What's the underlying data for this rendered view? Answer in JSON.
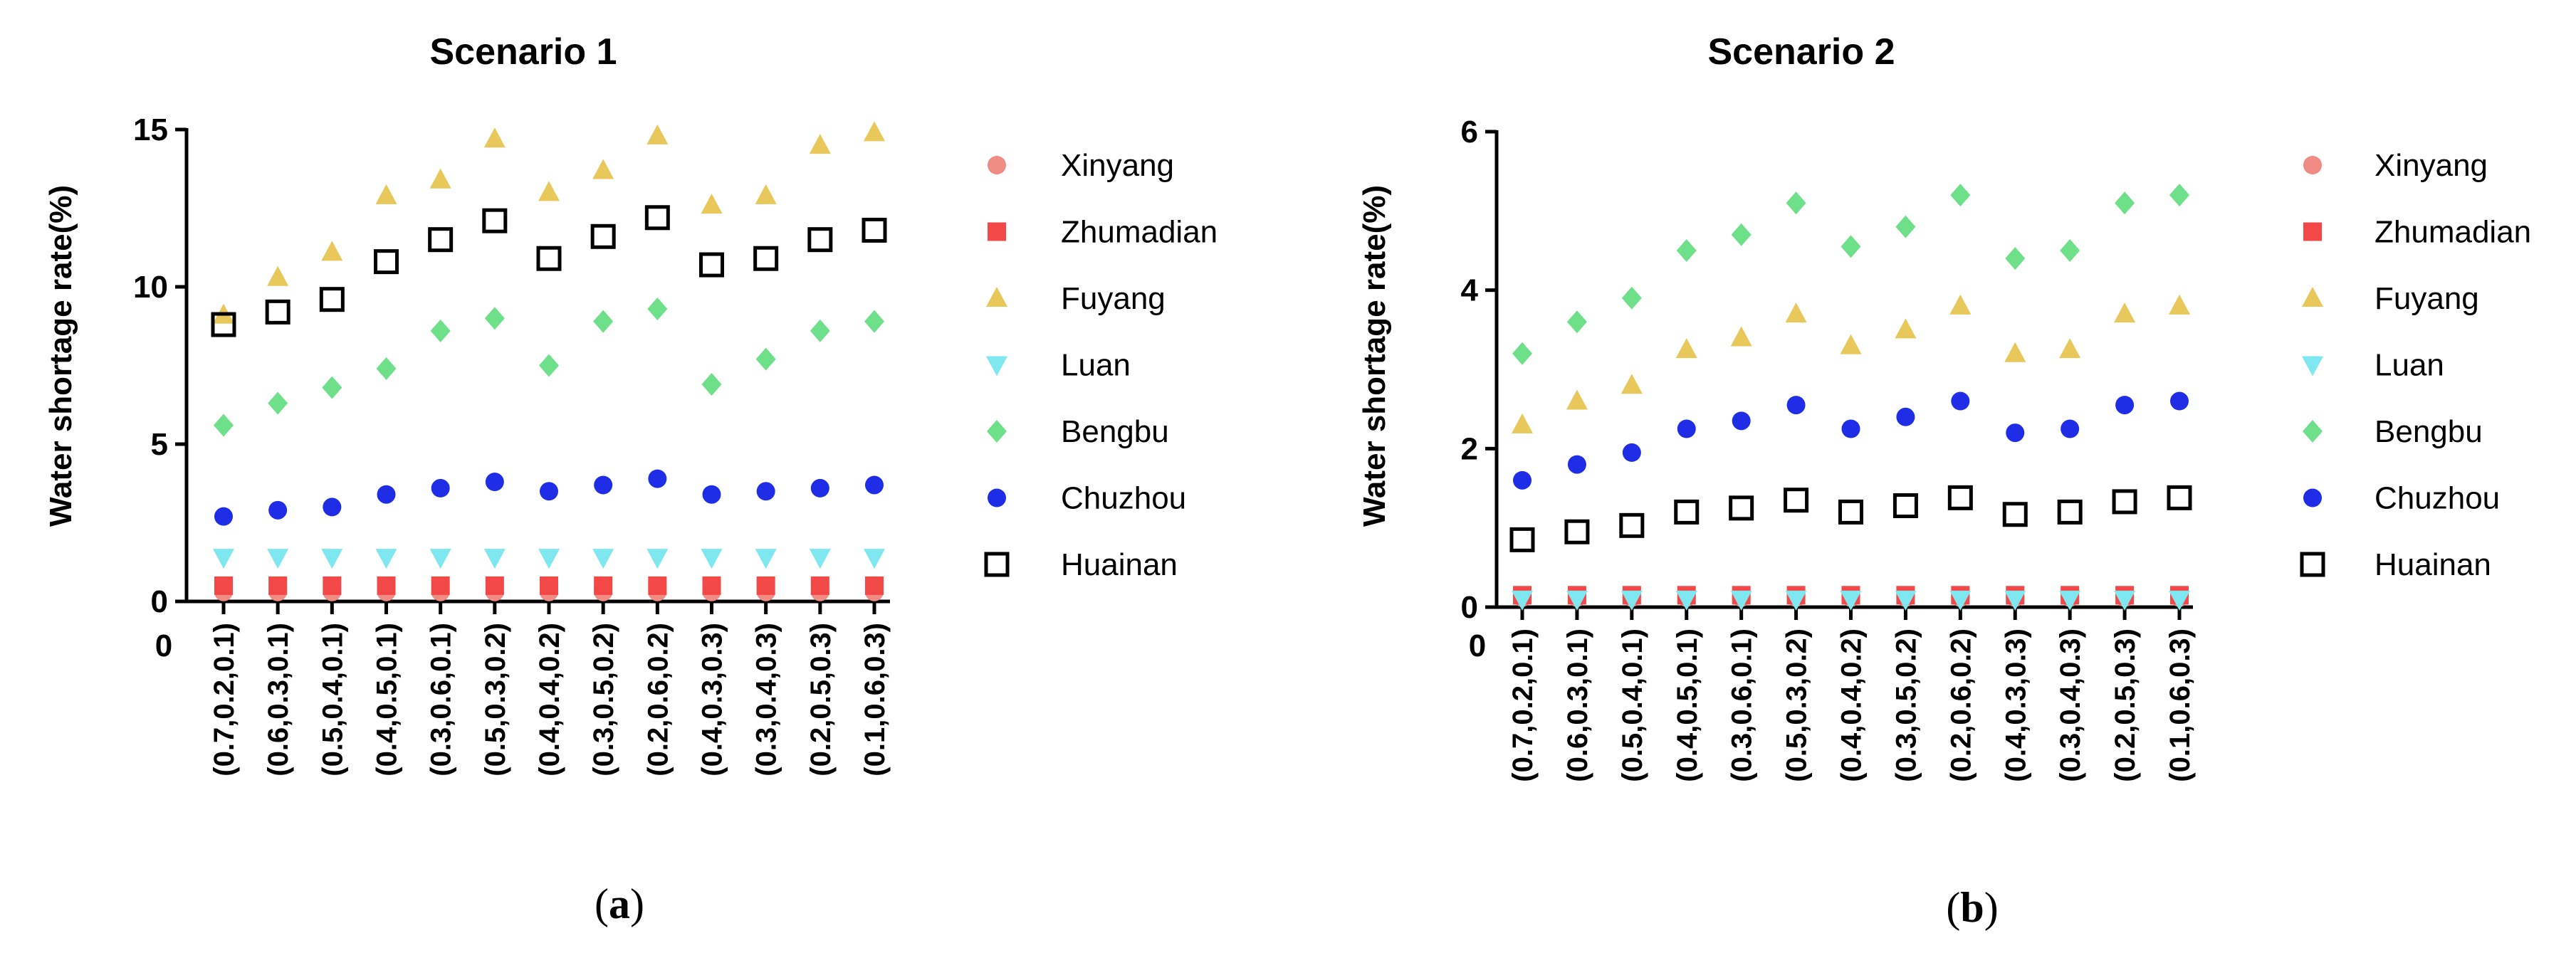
{
  "chart_data": [
    {
      "type": "scatter",
      "panel": "a",
      "title": "Scenario 1",
      "ylabel": "Water shortage rate(%)",
      "xlabel": "",
      "ylim": [
        0,
        15
      ],
      "yticks": [
        0,
        5,
        10,
        15
      ],
      "origin_label": "0",
      "categories": [
        "(0.7,0.2,0.1)",
        "(0.6,0.3,0.1)",
        "(0.5,0.4,0.1)",
        "(0.4,0.5,0.1)",
        "(0.3,0.6,0.1)",
        "(0.5,0.3,0.2)",
        "(0.4,0.4,0.2)",
        "(0.3,0.5,0.2)",
        "(0.2,0.6,0.2)",
        "(0.4,0.3,0.3)",
        "(0.3,0.4,0.3)",
        "(0.2,0.5,0.3)",
        "(0.1,0.6,0.3)"
      ],
      "series": [
        {
          "name": "Xinyang",
          "marker": "circle",
          "color": "#f08c84",
          "values": [
            0.3,
            0.3,
            0.3,
            0.3,
            0.3,
            0.3,
            0.3,
            0.3,
            0.3,
            0.3,
            0.3,
            0.3,
            0.3
          ]
        },
        {
          "name": "Zhumadian",
          "marker": "square",
          "color": "#f24848",
          "values": [
            0.5,
            0.5,
            0.5,
            0.5,
            0.5,
            0.5,
            0.5,
            0.5,
            0.5,
            0.5,
            0.5,
            0.5,
            0.5
          ]
        },
        {
          "name": "Fuyang",
          "marker": "triangle-up",
          "color": "#e8c85a",
          "values": [
            9.1,
            10.3,
            11.1,
            12.9,
            13.4,
            14.7,
            13.0,
            13.7,
            14.8,
            12.6,
            12.9,
            14.5,
            14.9
          ]
        },
        {
          "name": "Luan",
          "marker": "triangle-down",
          "color": "#7fe7f0",
          "values": [
            1.4,
            1.4,
            1.4,
            1.4,
            1.4,
            1.4,
            1.4,
            1.4,
            1.4,
            1.4,
            1.4,
            1.4,
            1.4
          ]
        },
        {
          "name": "Bengbu",
          "marker": "diamond",
          "color": "#6fe08a",
          "values": [
            5.6,
            6.3,
            6.8,
            7.4,
            8.6,
            9.0,
            7.5,
            8.9,
            9.3,
            6.9,
            7.7,
            8.6,
            8.9
          ]
        },
        {
          "name": "Chuzhou",
          "marker": "circle",
          "color": "#1f2ee6",
          "values": [
            2.7,
            2.9,
            3.0,
            3.4,
            3.6,
            3.8,
            3.5,
            3.7,
            3.9,
            3.4,
            3.5,
            3.6,
            3.7
          ]
        },
        {
          "name": "Huainan",
          "marker": "square-open",
          "color": "#000000",
          "values": [
            8.8,
            9.2,
            9.6,
            10.8,
            11.5,
            12.1,
            10.9,
            11.6,
            12.2,
            10.7,
            10.9,
            11.5,
            11.8
          ]
        }
      ]
    },
    {
      "type": "scatter",
      "panel": "b",
      "title": "Scenario 2",
      "ylabel": "Water shortage rate(%)",
      "xlabel": "",
      "ylim": [
        0,
        6
      ],
      "yticks": [
        0,
        2,
        4,
        6
      ],
      "origin_label": "0",
      "categories": [
        "(0.7,0.2,0.1)",
        "(0.6,0.3,0.1)",
        "(0.5,0.4,0.1)",
        "(0.4,0.5,0.1)",
        "(0.3,0.6,0.1)",
        "(0.5,0.3,0.2)",
        "(0.4,0.4,0.2)",
        "(0.3,0.5,0.2)",
        "(0.2,0.6,0.2)",
        "(0.4,0.3,0.3)",
        "(0.3,0.4,0.3)",
        "(0.2,0.5,0.3)",
        "(0.1,0.6,0.3)"
      ],
      "series": [
        {
          "name": "Xinyang",
          "marker": "circle",
          "color": "#f08c84",
          "values": [
            0.12,
            0.12,
            0.12,
            0.12,
            0.12,
            0.12,
            0.12,
            0.12,
            0.12,
            0.12,
            0.12,
            0.12,
            0.12
          ]
        },
        {
          "name": "Zhumadian",
          "marker": "square",
          "color": "#f24848",
          "values": [
            0.15,
            0.15,
            0.15,
            0.15,
            0.15,
            0.15,
            0.15,
            0.15,
            0.15,
            0.15,
            0.15,
            0.15,
            0.15
          ]
        },
        {
          "name": "Fuyang",
          "marker": "triangle-up",
          "color": "#e8c85a",
          "values": [
            2.3,
            2.6,
            2.8,
            3.25,
            3.4,
            3.7,
            3.3,
            3.5,
            3.8,
            3.2,
            3.25,
            3.7,
            3.8
          ]
        },
        {
          "name": "Luan",
          "marker": "triangle-down",
          "color": "#7fe7f0",
          "values": [
            0.1,
            0.1,
            0.1,
            0.1,
            0.1,
            0.1,
            0.1,
            0.1,
            0.1,
            0.1,
            0.1,
            0.1,
            0.1
          ]
        },
        {
          "name": "Bengbu",
          "marker": "diamond",
          "color": "#6fe08a",
          "values": [
            3.2,
            3.6,
            3.9,
            4.5,
            4.7,
            5.1,
            4.55,
            4.8,
            5.2,
            4.4,
            4.5,
            5.1,
            5.2
          ]
        },
        {
          "name": "Chuzhou",
          "marker": "circle",
          "color": "#1f2ee6",
          "values": [
            1.6,
            1.8,
            1.95,
            2.25,
            2.35,
            2.55,
            2.25,
            2.4,
            2.6,
            2.2,
            2.25,
            2.55,
            2.6
          ]
        },
        {
          "name": "Huainan",
          "marker": "square-open",
          "color": "#000000",
          "values": [
            0.85,
            0.95,
            1.03,
            1.2,
            1.25,
            1.35,
            1.2,
            1.28,
            1.38,
            1.17,
            1.2,
            1.33,
            1.38
          ]
        }
      ]
    }
  ],
  "panel_labels": [
    "a",
    "b"
  ]
}
